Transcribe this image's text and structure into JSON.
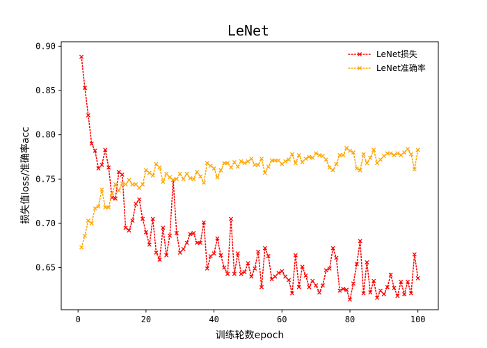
{
  "chart_data": {
    "type": "line",
    "title": "LeNet",
    "xlabel": "训练轮数epoch",
    "ylabel": "损失值loss/准确率acc",
    "xlim": [
      -4.95,
      106
    ],
    "ylim": [
      0.6025,
      0.905
    ],
    "xticks": [
      0,
      20,
      40,
      60,
      80,
      100
    ],
    "yticks": [
      0.65,
      0.7,
      0.75,
      0.8,
      0.85,
      0.9
    ],
    "ytick_labels": [
      "0.65",
      "0.70",
      "0.75",
      "0.80",
      "0.85",
      "0.90"
    ],
    "grid": false,
    "legend_position": "top-right",
    "x": [
      1,
      2,
      3,
      4,
      5,
      6,
      7,
      8,
      9,
      10,
      11,
      12,
      13,
      14,
      15,
      16,
      17,
      18,
      19,
      20,
      21,
      22,
      23,
      24,
      25,
      26,
      27,
      28,
      29,
      30,
      31,
      32,
      33,
      34,
      35,
      36,
      37,
      38,
      39,
      40,
      41,
      42,
      43,
      44,
      45,
      46,
      47,
      48,
      49,
      50,
      51,
      52,
      53,
      54,
      55,
      56,
      57,
      58,
      59,
      60,
      61,
      62,
      63,
      64,
      65,
      66,
      67,
      68,
      69,
      70,
      71,
      72,
      73,
      74,
      75,
      76,
      77,
      78,
      79,
      80,
      81,
      82,
      83,
      84,
      85,
      86,
      87,
      88,
      89,
      90,
      91,
      92,
      93,
      94,
      95,
      96,
      97,
      98,
      99,
      100
    ],
    "series": [
      {
        "name": "LeNet损失",
        "color": "#ff0000",
        "marker": "x",
        "linestyle": "dotted",
        "values": [
          0.888,
          0.853,
          0.822,
          0.79,
          0.782,
          0.762,
          0.766,
          0.783,
          0.763,
          0.729,
          0.728,
          0.758,
          0.755,
          0.695,
          0.692,
          0.703,
          0.722,
          0.727,
          0.705,
          0.69,
          0.676,
          0.705,
          0.667,
          0.659,
          0.695,
          0.664,
          0.686,
          0.749,
          0.689,
          0.667,
          0.671,
          0.678,
          0.688,
          0.689,
          0.678,
          0.678,
          0.701,
          0.649,
          0.663,
          0.666,
          0.683,
          0.664,
          0.65,
          0.643,
          0.705,
          0.643,
          0.666,
          0.643,
          0.645,
          0.655,
          0.64,
          0.649,
          0.668,
          0.628,
          0.672,
          0.663,
          0.637,
          0.64,
          0.644,
          0.646,
          0.64,
          0.636,
          0.621,
          0.664,
          0.628,
          0.651,
          0.641,
          0.628,
          0.635,
          0.63,
          0.622,
          0.63,
          0.647,
          0.649,
          0.672,
          0.661,
          0.624,
          0.626,
          0.625,
          0.614,
          0.632,
          0.654,
          0.68,
          0.621,
          0.656,
          0.622,
          0.635,
          0.616,
          0.624,
          0.62,
          0.628,
          0.642,
          0.627,
          0.618,
          0.634,
          0.62,
          0.634,
          0.621,
          0.665,
          0.638
        ]
      },
      {
        "name": "LeNet准确率",
        "color": "#ffa500",
        "marker": "x",
        "linestyle": "dotted",
        "values": [
          0.673,
          0.686,
          0.703,
          0.7,
          0.717,
          0.719,
          0.738,
          0.718,
          0.718,
          0.734,
          0.744,
          0.737,
          0.745,
          0.744,
          0.749,
          0.744,
          0.744,
          0.74,
          0.744,
          0.76,
          0.757,
          0.754,
          0.767,
          0.763,
          0.747,
          0.756,
          0.752,
          0.749,
          0.75,
          0.756,
          0.75,
          0.756,
          0.751,
          0.75,
          0.758,
          0.753,
          0.746,
          0.768,
          0.765,
          0.762,
          0.752,
          0.76,
          0.768,
          0.768,
          0.763,
          0.769,
          0.764,
          0.77,
          0.768,
          0.77,
          0.773,
          0.766,
          0.766,
          0.773,
          0.757,
          0.764,
          0.771,
          0.771,
          0.771,
          0.767,
          0.77,
          0.772,
          0.778,
          0.768,
          0.777,
          0.769,
          0.773,
          0.775,
          0.774,
          0.779,
          0.777,
          0.776,
          0.772,
          0.763,
          0.76,
          0.767,
          0.777,
          0.777,
          0.785,
          0.782,
          0.78,
          0.762,
          0.76,
          0.778,
          0.768,
          0.774,
          0.783,
          0.768,
          0.772,
          0.776,
          0.779,
          0.779,
          0.777,
          0.779,
          0.777,
          0.78,
          0.784,
          0.778,
          0.761,
          0.783
        ]
      }
    ]
  }
}
